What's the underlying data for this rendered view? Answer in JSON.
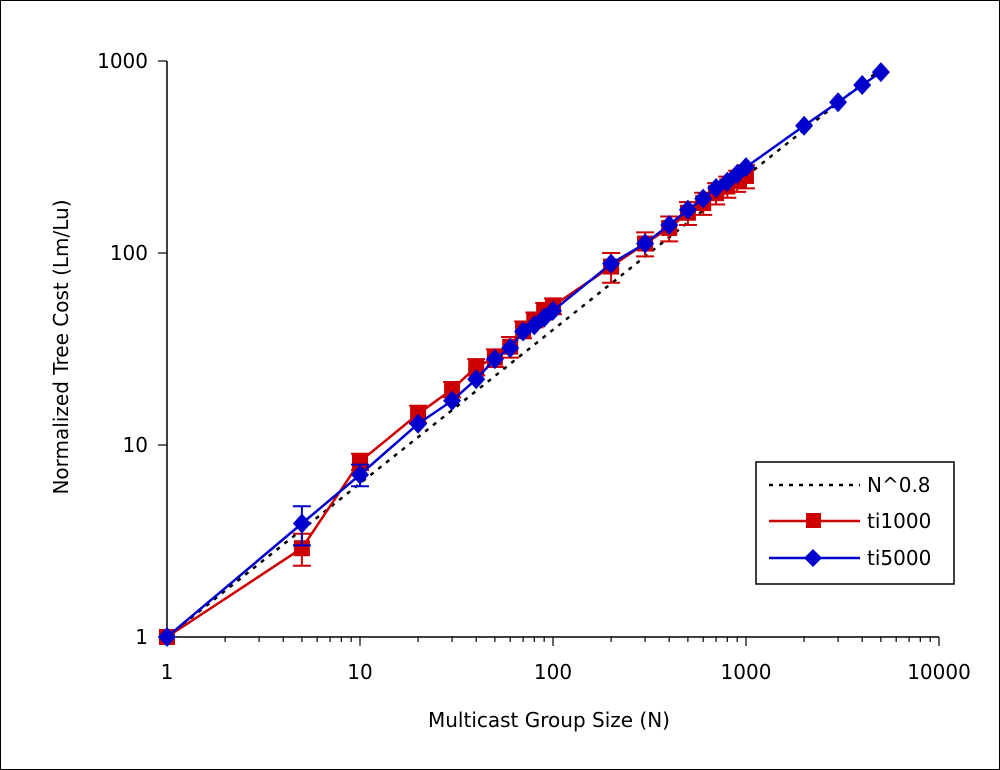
{
  "chart_data": {
    "type": "line",
    "xlabel": "Multicast Group Size (N)",
    "ylabel": "Normalized Tree Cost (Lm/Lu)",
    "xscale": "log",
    "yscale": "log",
    "xlim": [
      1,
      10000
    ],
    "ylim": [
      1,
      1000
    ],
    "x_ticks": [
      "1",
      "10",
      "100",
      "1000",
      "10000"
    ],
    "y_ticks": [
      "1",
      "10",
      "100",
      "1000"
    ],
    "grid": false,
    "legend_position": "right",
    "series": [
      {
        "name": "N^0.8",
        "style": "dotted",
        "color": "#000000",
        "x": [
          1,
          5,
          10,
          20,
          30,
          40,
          50,
          60,
          70,
          80,
          90,
          100,
          200,
          300,
          400,
          500,
          600,
          700,
          800,
          900,
          1000,
          2000,
          3000,
          4000,
          5000
        ],
        "y": [
          1,
          3.62,
          6.31,
          10.99,
          15.19,
          19.13,
          22.87,
          26.46,
          29.93,
          33.3,
          36.59,
          39.81,
          69.31,
          95.87,
          120.7,
          144.3,
          166.9,
          188.8,
          210.1,
          230.8,
          251.2,
          437.3,
          604.8,
          761.3,
          910.3
        ]
      },
      {
        "name": "ti1000",
        "color": "#cc0000",
        "marker": "square",
        "x": [
          1,
          5,
          10,
          20,
          30,
          40,
          50,
          60,
          70,
          80,
          90,
          100,
          200,
          300,
          400,
          500,
          600,
          700,
          800,
          900,
          1000
        ],
        "y": [
          1,
          2.9,
          8.2,
          14.5,
          19.5,
          25.5,
          28.5,
          32.5,
          40,
          45,
          50,
          53,
          85,
          112,
          135,
          162,
          182,
          205,
          222,
          238,
          252
        ],
        "err": [
          0,
          0.55,
          0.8,
          1.5,
          1.8,
          2.5,
          3,
          4,
          4,
          4,
          5,
          5,
          15,
          16,
          20,
          22,
          24,
          26,
          28,
          30,
          35
        ]
      },
      {
        "name": "ti5000",
        "color": "#0000cc",
        "marker": "diamond",
        "x": [
          1,
          5,
          10,
          20,
          30,
          40,
          50,
          60,
          70,
          80,
          90,
          100,
          200,
          300,
          400,
          500,
          600,
          700,
          800,
          900,
          1000,
          2000,
          3000,
          4000,
          5000
        ],
        "y": [
          1,
          3.9,
          7,
          12.9,
          17,
          22,
          28,
          32,
          39,
          42,
          46,
          50,
          88,
          112,
          140,
          168,
          192,
          218,
          235,
          258,
          280,
          460,
          610,
          750,
          875
        ],
        "err": [
          0,
          0.9,
          0.9,
          0,
          0,
          0,
          0,
          0,
          0,
          0,
          0,
          0,
          0,
          0,
          0,
          0,
          0,
          0,
          0,
          0,
          0,
          0,
          0,
          0,
          0
        ]
      }
    ]
  }
}
